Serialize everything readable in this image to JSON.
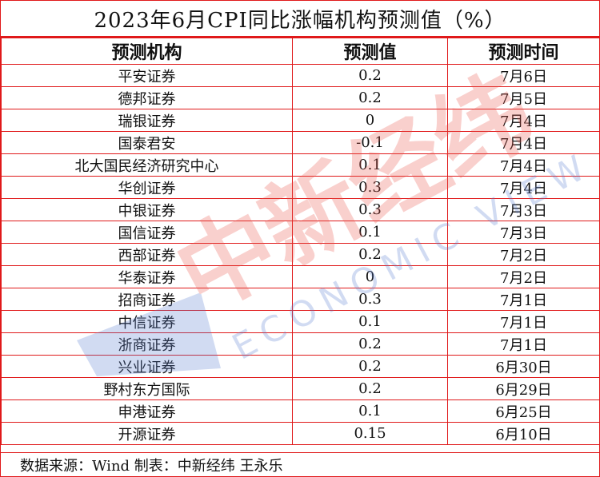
{
  "title": "2023年6月CPI同比涨幅机构预测值（%）",
  "columns": [
    "预测机构",
    "预测值",
    "预测时间"
  ],
  "rows": [
    [
      "平安证券",
      "0.2",
      "7月6日"
    ],
    [
      "德邦证券",
      "0.2",
      "7月5日"
    ],
    [
      "瑞银证券",
      "0",
      "7月4日"
    ],
    [
      "国泰君安",
      "-0.1",
      "7月4日"
    ],
    [
      "北大国民经济研究中心",
      "0.1",
      "7月4日"
    ],
    [
      "华创证券",
      "0.3",
      "7月4日"
    ],
    [
      "中银证券",
      "0.3",
      "7月3日"
    ],
    [
      "国信证券",
      "0.1",
      "7月3日"
    ],
    [
      "西部证券",
      "0.2",
      "7月2日"
    ],
    [
      "华泰证券",
      "0",
      "7月2日"
    ],
    [
      "招商证券",
      "0.3",
      "7月1日"
    ],
    [
      "中信证券",
      "0.1",
      "7月1日"
    ],
    [
      "浙商证券",
      "0.2",
      "7月1日"
    ],
    [
      "兴业证券",
      "0.2",
      "6月30日"
    ],
    [
      "野村东方国际",
      "0.2",
      "6月29日"
    ],
    [
      "申港证券",
      "0.1",
      "6月25日"
    ],
    [
      "开源证券",
      "0.15",
      "6月10日"
    ]
  ],
  "source": "数据来源：Wind 制表：中新经纬 王永乐",
  "watermark": {
    "brand_text": "中新经纬",
    "sub_text": "ECONOMIC VIEW",
    "color_red": "#e8564d",
    "color_blue": "#5b7fd1"
  },
  "colors": {
    "border": "#e0191a"
  }
}
